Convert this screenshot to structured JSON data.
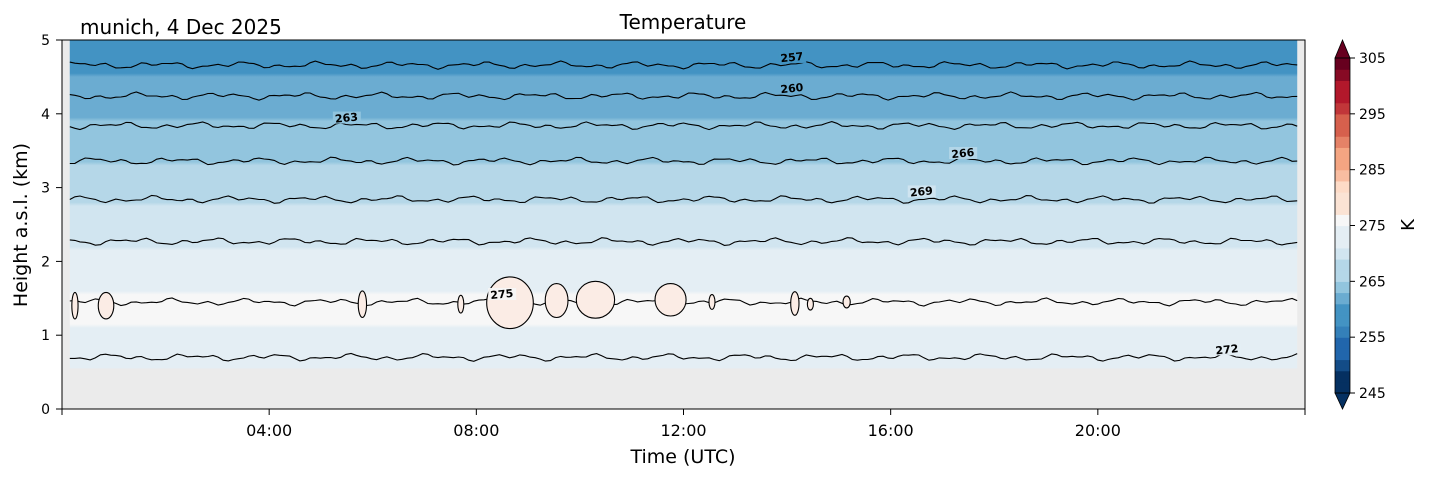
{
  "chart_data": {
    "type": "heatmap",
    "title": "Temperature",
    "subtitle": "munich, 4 Dec 2025",
    "xlabel": "Time (UTC)",
    "ylabel": "Height a.s.l. (km)",
    "xlim": [
      0,
      24
    ],
    "ylim": [
      0,
      5
    ],
    "x_ticks": [
      4,
      8,
      12,
      16,
      20
    ],
    "x_tick_labels": [
      "04:00",
      "08:00",
      "12:00",
      "16:00",
      "20:00"
    ],
    "y_ticks": [
      0,
      1,
      2,
      3,
      4,
      5
    ],
    "y_tick_labels": [
      "0",
      "1",
      "2",
      "3",
      "4",
      "5"
    ],
    "data_range_x": [
      0.15,
      23.85
    ],
    "data_floor_km": 0.55,
    "colorbar": {
      "label": "K",
      "vmin": 245,
      "vmax": 305,
      "levels": 30,
      "ticks": [
        245,
        255,
        265,
        275,
        285,
        295,
        305
      ],
      "tick_labels": [
        "245",
        "255",
        "265",
        "275",
        "285",
        "295",
        "305"
      ],
      "extend": "both",
      "colors": [
        "#053061",
        "#134c87",
        "#2166ac",
        "#3480b9",
        "#4393c3",
        "#6bacd1",
        "#92c5de",
        "#b5d7e8",
        "#d1e5f0",
        "#e4eef4",
        "#f7f7f7",
        "#fbe3d4",
        "#fddbc7",
        "#f9bda1",
        "#f4a582",
        "#e58267",
        "#d6604d",
        "#c13639",
        "#b2182b",
        "#870a24",
        "#67001f"
      ]
    },
    "contour_levels": [
      {
        "value": 257,
        "height_km": 4.66,
        "label": "257",
        "label_x": 14.1
      },
      {
        "value": 260,
        "height_km": 4.24,
        "label": "260",
        "label_x": 14.1
      },
      {
        "value": 263,
        "height_km": 3.84,
        "label": "263",
        "label_x": 5.5
      },
      {
        "value": 266,
        "height_km": 3.36,
        "label": "266",
        "label_x": 17.4
      },
      {
        "value": 269,
        "height_km": 2.84,
        "label": "269",
        "label_x": 16.6
      },
      {
        "value": 272,
        "height_km": 2.27,
        "label": "",
        "label_x": 0
      },
      {
        "value": 272,
        "height_km": 0.7,
        "label": "272",
        "label_x": 22.5
      },
      {
        "value": 275,
        "height_km": 1.45,
        "label": "275",
        "label_x": 8.5
      }
    ],
    "warm_cells_275K": [
      {
        "t": 0.25,
        "h": 1.4,
        "dt": 0.06,
        "dh": 0.18
      },
      {
        "t": 0.85,
        "h": 1.4,
        "dt": 0.15,
        "dh": 0.18
      },
      {
        "t": 5.8,
        "h": 1.42,
        "dt": 0.08,
        "dh": 0.18
      },
      {
        "t": 7.7,
        "h": 1.42,
        "dt": 0.05,
        "dh": 0.12
      },
      {
        "t": 8.65,
        "h": 1.44,
        "dt": 0.45,
        "dh": 0.35
      },
      {
        "t": 9.55,
        "h": 1.47,
        "dt": 0.22,
        "dh": 0.23
      },
      {
        "t": 10.3,
        "h": 1.48,
        "dt": 0.37,
        "dh": 0.25
      },
      {
        "t": 11.75,
        "h": 1.48,
        "dt": 0.3,
        "dh": 0.22
      },
      {
        "t": 12.55,
        "h": 1.45,
        "dt": 0.05,
        "dh": 0.1
      },
      {
        "t": 14.15,
        "h": 1.43,
        "dt": 0.08,
        "dh": 0.16
      },
      {
        "t": 14.45,
        "h": 1.42,
        "dt": 0.05,
        "dh": 0.08
      },
      {
        "t": 15.15,
        "h": 1.45,
        "dt": 0.07,
        "dh": 0.08
      }
    ]
  }
}
